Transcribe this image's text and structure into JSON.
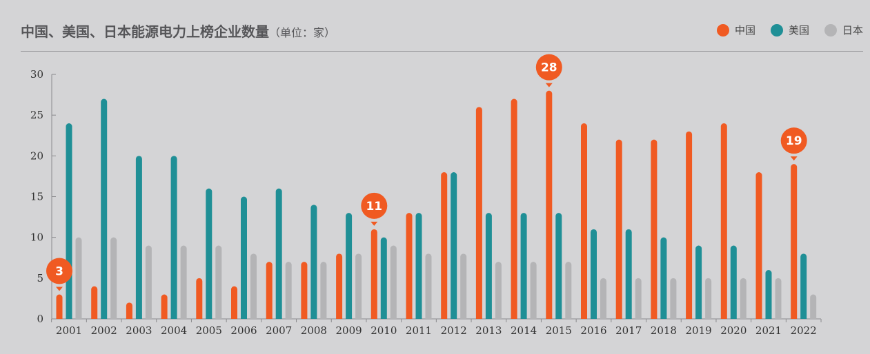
{
  "title": "中国、美国、日本能源电力上榜企业数量",
  "unit": "（单位：家）",
  "chart_data": {
    "type": "bar",
    "categories": [
      "2001",
      "2002",
      "2003",
      "2004",
      "2005",
      "2006",
      "2007",
      "2008",
      "2009",
      "2010",
      "2011",
      "2012",
      "2013",
      "2014",
      "2015",
      "2016",
      "2017",
      "2018",
      "2019",
      "2020",
      "2021",
      "2022"
    ],
    "series": [
      {
        "name": "中国",
        "color": "#f05a22",
        "values": [
          3,
          4,
          2,
          3,
          5,
          4,
          7,
          7,
          8,
          11,
          13,
          18,
          26,
          27,
          28,
          24,
          22,
          22,
          23,
          24,
          18,
          19
        ]
      },
      {
        "name": "美国",
        "color": "#1f8f96",
        "values": [
          24,
          27,
          20,
          20,
          16,
          15,
          16,
          14,
          13,
          10,
          13,
          18,
          13,
          13,
          13,
          11,
          11,
          10,
          9,
          9,
          6,
          8
        ]
      },
      {
        "name": "日本",
        "color": "#b4b4b6",
        "values": [
          10,
          10,
          9,
          9,
          9,
          8,
          7,
          7,
          8,
          9,
          8,
          8,
          7,
          7,
          7,
          5,
          5,
          5,
          5,
          5,
          5,
          3
        ]
      }
    ],
    "ylim": [
      0,
      30
    ],
    "yticks": [
      "0",
      "5",
      "10",
      "15",
      "20",
      "25",
      "30"
    ],
    "callouts": [
      {
        "category": "2001",
        "series": "中国",
        "label": "3"
      },
      {
        "category": "2010",
        "series": "中国",
        "label": "11"
      },
      {
        "category": "2015",
        "series": "中国",
        "label": "28"
      },
      {
        "category": "2022",
        "series": "中国",
        "label": "19"
      }
    ],
    "legend_position": "top-right",
    "grid": false
  }
}
